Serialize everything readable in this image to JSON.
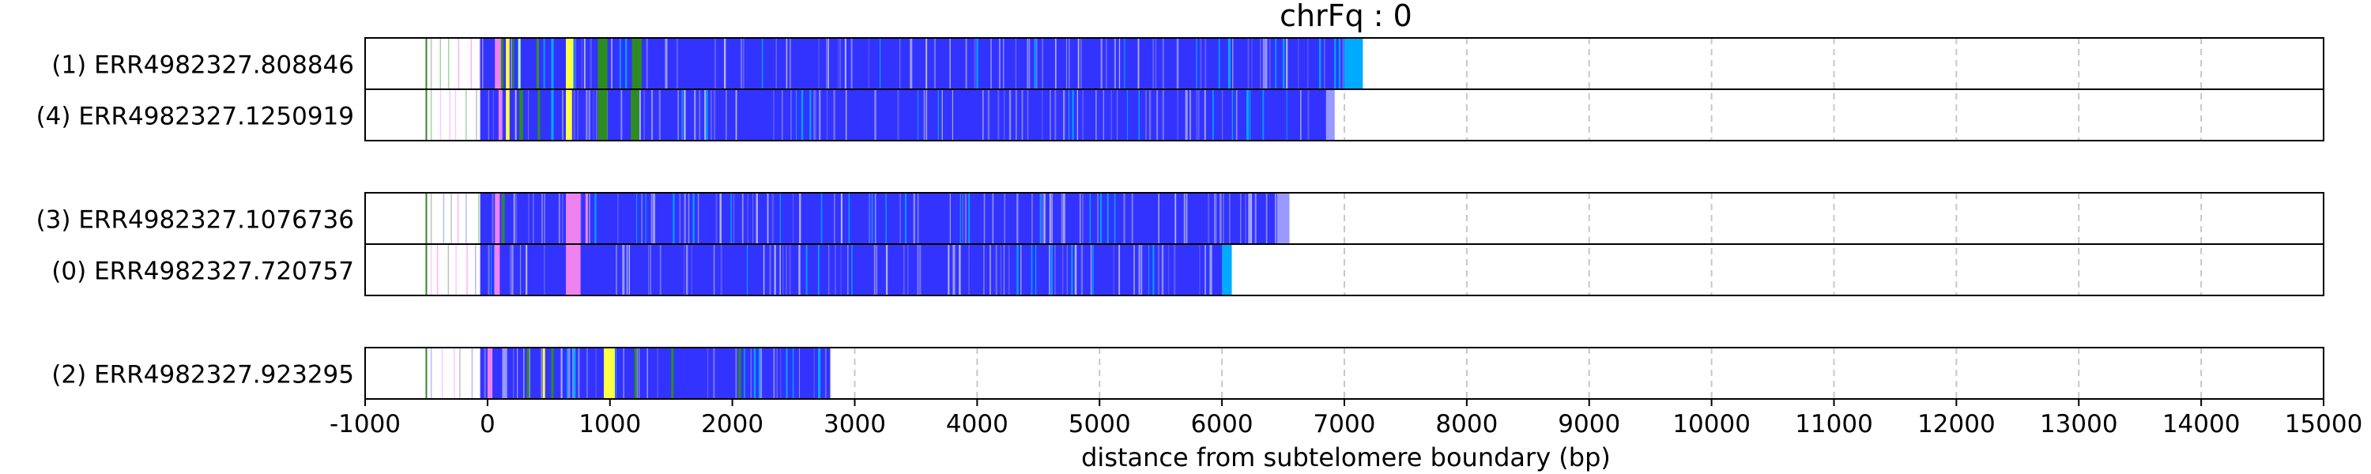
{
  "chart_data": {
    "type": "tracks",
    "title": "chrFq : 0",
    "xlabel": "distance from subtelomere boundary (bp)",
    "xlim": [
      -1000,
      15000
    ],
    "xticks": [
      -1000,
      0,
      1000,
      2000,
      3000,
      4000,
      5000,
      6000,
      7000,
      8000,
      9000,
      10000,
      11000,
      12000,
      13000,
      14000,
      15000
    ],
    "vertical_gridlines": "dashed",
    "groups": [
      {
        "reads": [
          {
            "label": "(1) ERR4982327.808846",
            "start": -500,
            "end": 7150,
            "segments": [
              {
                "from": 60,
                "to": 110,
                "color": "#ee82ee"
              },
              {
                "from": 110,
                "to": 130,
                "color": "#2e8b22"
              },
              {
                "from": 150,
                "to": 180,
                "color": "#ffff44"
              },
              {
                "from": 205,
                "to": 215,
                "color": "#2e8b22"
              },
              {
                "from": 250,
                "to": 270,
                "color": "#aaffaa"
              },
              {
                "from": 400,
                "to": 420,
                "color": "#3a8f2a"
              },
              {
                "from": 520,
                "to": 540,
                "color": "#00aaff"
              },
              {
                "from": 640,
                "to": 700,
                "color": "#ffff44"
              },
              {
                "from": 900,
                "to": 980,
                "color": "#2e8b22"
              },
              {
                "from": 1180,
                "to": 1260,
                "color": "#2e8b22"
              },
              {
                "from": 1450,
                "to": 1470,
                "color": "#9999ff"
              },
              {
                "from": 3450,
                "to": 3470,
                "color": "#9999ff"
              },
              {
                "from": 6050,
                "to": 6070,
                "color": "#00aaff"
              },
              {
                "from": 6350,
                "to": 6370,
                "color": "#9999ff"
              },
              {
                "from": 7000,
                "to": 7150,
                "color": "#00aaff"
              }
            ]
          },
          {
            "label": "(4) ERR4982327.1250919",
            "start": -500,
            "end": 6920,
            "segments": [
              {
                "from": 90,
                "to": 120,
                "color": "#ee82ee"
              },
              {
                "from": 150,
                "to": 180,
                "color": "#ffff44"
              },
              {
                "from": 260,
                "to": 290,
                "color": "#2e8b22"
              },
              {
                "from": 410,
                "to": 430,
                "color": "#2e8b22"
              },
              {
                "from": 520,
                "to": 540,
                "color": "#00aaff"
              },
              {
                "from": 640,
                "to": 690,
                "color": "#ffff44"
              },
              {
                "from": 900,
                "to": 980,
                "color": "#2e8b22"
              },
              {
                "from": 1170,
                "to": 1240,
                "color": "#2e8b22"
              },
              {
                "from": 5700,
                "to": 5720,
                "color": "#9999ff"
              },
              {
                "from": 6200,
                "to": 6220,
                "color": "#00aaff"
              },
              {
                "from": 6850,
                "to": 6920,
                "color": "#9999ff"
              }
            ]
          }
        ]
      },
      {
        "reads": [
          {
            "label": "(3) ERR4982327.1076736",
            "start": -500,
            "end": 6550,
            "segments": [
              {
                "from": 60,
                "to": 100,
                "color": "#ee82ee"
              },
              {
                "from": 120,
                "to": 140,
                "color": "#2e8b22"
              },
              {
                "from": 640,
                "to": 760,
                "color": "#ee82ee"
              },
              {
                "from": 800,
                "to": 820,
                "color": "#ee82ee"
              },
              {
                "from": 1350,
                "to": 1370,
                "color": "#9999ff"
              },
              {
                "from": 4700,
                "to": 4720,
                "color": "#9999ff"
              },
              {
                "from": 6450,
                "to": 6550,
                "color": "#9999ff"
              }
            ]
          },
          {
            "label": "(0) ERR4982327.720757",
            "start": -500,
            "end": 6080,
            "segments": [
              {
                "from": 60,
                "to": 100,
                "color": "#ee82ee"
              },
              {
                "from": 640,
                "to": 760,
                "color": "#ee82ee"
              },
              {
                "from": 1100,
                "to": 1120,
                "color": "#9999ff"
              },
              {
                "from": 3800,
                "to": 3820,
                "color": "#9999ff"
              },
              {
                "from": 5900,
                "to": 5920,
                "color": "#9999ff"
              },
              {
                "from": 6000,
                "to": 6080,
                "color": "#00aaff"
              }
            ]
          }
        ]
      },
      {
        "reads": [
          {
            "label": "(2) ERR4982327.923295",
            "start": -500,
            "end": 2800,
            "segments": [
              {
                "from": 0,
                "to": 40,
                "color": "#ee82ee"
              },
              {
                "from": 120,
                "to": 160,
                "color": "#9999ff"
              },
              {
                "from": 320,
                "to": 340,
                "color": "#2e8b22"
              },
              {
                "from": 450,
                "to": 470,
                "color": "#ffff44"
              },
              {
                "from": 520,
                "to": 540,
                "color": "#2e8b22"
              },
              {
                "from": 700,
                "to": 720,
                "color": "#00aaff"
              },
              {
                "from": 950,
                "to": 1040,
                "color": "#ffff44"
              },
              {
                "from": 1200,
                "to": 1220,
                "color": "#2e8b22"
              },
              {
                "from": 1500,
                "to": 1520,
                "color": "#2e8b22"
              },
              {
                "from": 2050,
                "to": 2070,
                "color": "#2e8b22"
              },
              {
                "from": 2700,
                "to": 2720,
                "color": "#00aaff"
              }
            ]
          }
        ]
      }
    ],
    "colors": {
      "read_fill": "#3333ff",
      "frame": "#000000",
      "grid": "#c8c8c8"
    }
  }
}
